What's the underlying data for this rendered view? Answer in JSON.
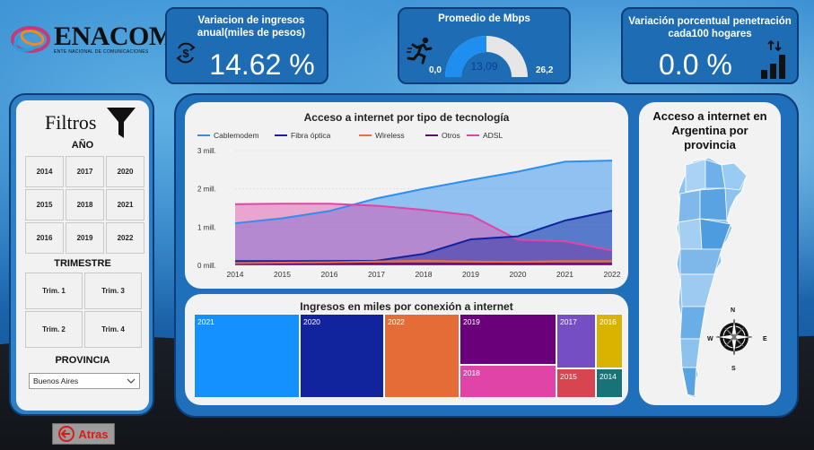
{
  "logo": {
    "text": "ENACOM",
    "subtitle": "ENTE NACIONAL DE COMUNICACIONES"
  },
  "kpi_ingresos": {
    "title": "Variacion de ingresos anual(miles de pesos)",
    "value": "14.62 %"
  },
  "kpi_mbps": {
    "title": "Promedio de Mbps",
    "value": "13,09",
    "min": "0,0",
    "max": "26,2",
    "fraction": 0.5
  },
  "kpi_penetracion": {
    "title": "Variación porcentual penetración cada100 hogares",
    "value": "0.0 %"
  },
  "filtros": {
    "title": "Filtros",
    "anio_label": "AÑO",
    "years": [
      "2014",
      "2017",
      "2020",
      "2015",
      "2018",
      "2021",
      "2016",
      "2019",
      "2022"
    ],
    "trimestre_label": "TRIMESTRE",
    "trimestres": [
      "Trim. 1",
      "Trim. 3",
      "Trim. 2",
      "Trim. 4"
    ],
    "provincia_label": "PROVINCIA",
    "provincia_value": "Buenos Aires"
  },
  "back_button": "Atras",
  "map_panel": {
    "title": "Acceso a internet en Argentina por provincia",
    "compass": [
      "N",
      "S",
      "E",
      "W"
    ]
  },
  "colors": {
    "Cablemodem": "#2d8fef",
    "Fibra óptica": "#12239e",
    "Wireless": "#e8733a",
    "Otros": "#6b007b",
    "ADSL": "#e044a7"
  },
  "chart_data": [
    {
      "type": "area",
      "title": "Acceso a internet por tipo de tecnología",
      "x": [
        2014,
        2015,
        2016,
        2017,
        2018,
        2019,
        2020,
        2021,
        2022
      ],
      "y_ticks": [
        "0 mill.",
        "1 mill.",
        "2 mill.",
        "3 mill."
      ],
      "ylim": [
        0,
        3000000
      ],
      "legend_position": "top",
      "series": [
        {
          "name": "Cablemodem",
          "values": [
            1100000,
            1230000,
            1420000,
            1750000,
            2000000,
            2230000,
            2450000,
            2710000,
            2740000
          ]
        },
        {
          "name": "Fibra óptica",
          "values": [
            110000,
            110000,
            115000,
            120000,
            300000,
            680000,
            760000,
            1170000,
            1430000
          ]
        },
        {
          "name": "Wireless",
          "values": [
            60000,
            70000,
            80000,
            100000,
            120000,
            100000,
            90000,
            110000,
            110000
          ]
        },
        {
          "name": "Otros",
          "values": [
            40000,
            40000,
            40000,
            40000,
            40000,
            40000,
            40000,
            40000,
            40000
          ]
        },
        {
          "name": "ADSL",
          "values": [
            1600000,
            1610000,
            1610000,
            1560000,
            1450000,
            1310000,
            670000,
            630000,
            390000
          ]
        }
      ]
    },
    {
      "type": "treemap",
      "title": "Ingresos en miles por conexión a internet",
      "categories": [
        "2021",
        "2020",
        "2022",
        "2019",
        "2018",
        "2017",
        "2016",
        "2015",
        "2014"
      ],
      "colors": [
        "#1590ff",
        "#12239e",
        "#e66c37",
        "#6b007b",
        "#e044a7",
        "#744ec2",
        "#d9b300",
        "#d64550",
        "#197278"
      ]
    }
  ]
}
